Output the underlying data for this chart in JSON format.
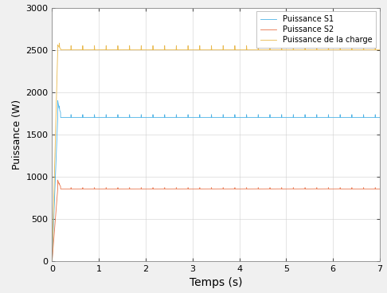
{
  "title": "",
  "xlabel": "Temps (s)",
  "ylabel": "Puissance (W)",
  "xlim": [
    0,
    7
  ],
  "ylim": [
    0,
    3000
  ],
  "xticks": [
    0,
    1,
    2,
    3,
    4,
    5,
    6,
    7
  ],
  "yticks": [
    0,
    500,
    1000,
    1500,
    2000,
    2500,
    3000
  ],
  "legend_labels": [
    "Puissance S1",
    "Puissance S2",
    "Puissance de la charge"
  ],
  "colors": {
    "S1": "#4db3e6",
    "S2": "#e8734a",
    "charge": "#e8b84b"
  },
  "steady_S1": 1700,
  "steady_S2": 855,
  "steady_charge": 2500,
  "rise_time": 0.12,
  "overshoot_S1": 1900,
  "overshoot_S2": 960,
  "overshoot_charge": 2560,
  "background_color": "#f0f0f0",
  "plot_bg": "#ffffff",
  "linewidth": 0.6,
  "xlabel_fontsize": 10,
  "ylabel_fontsize": 9,
  "tick_fontsize": 8,
  "legend_fontsize": 7
}
